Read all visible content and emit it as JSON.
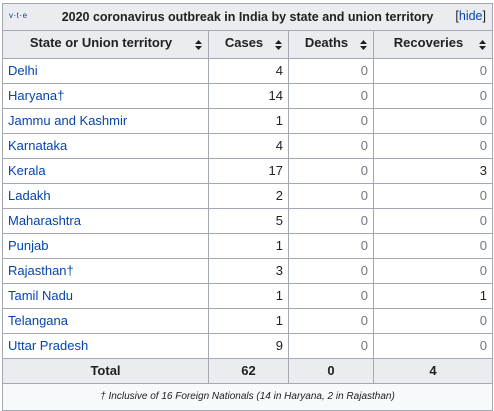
{
  "navbox": {
    "v": "v",
    "t": "t",
    "e": "e",
    "sep": "·",
    "title": "2020 coronavirus outbreak in India by state and union territory",
    "hide_label": "hide",
    "bracket_open": "[",
    "bracket_close": "]"
  },
  "columns": {
    "state": "State or Union territory",
    "cases": "Cases",
    "deaths": "Deaths",
    "recoveries": "Recoveries",
    "sort_icon": "sort-icon"
  },
  "rows": [
    {
      "name": "Delhi",
      "cases": "4",
      "deaths": "0",
      "recoveries": "0"
    },
    {
      "name": "Haryana†",
      "cases": "14",
      "deaths": "0",
      "recoveries": "0"
    },
    {
      "name": "Jammu and Kashmir",
      "cases": "1",
      "deaths": "0",
      "recoveries": "0"
    },
    {
      "name": "Karnataka",
      "cases": "4",
      "deaths": "0",
      "recoveries": "0"
    },
    {
      "name": "Kerala",
      "cases": "17",
      "deaths": "0",
      "recoveries": "3"
    },
    {
      "name": "Ladakh",
      "cases": "2",
      "deaths": "0",
      "recoveries": "0"
    },
    {
      "name": "Maharashtra",
      "cases": "5",
      "deaths": "0",
      "recoveries": "0"
    },
    {
      "name": "Punjab",
      "cases": "1",
      "deaths": "0",
      "recoveries": "0"
    },
    {
      "name": "Rajasthan†",
      "cases": "3",
      "deaths": "0",
      "recoveries": "0"
    },
    {
      "name": "Tamil Nadu",
      "cases": "1",
      "deaths": "0",
      "recoveries": "1"
    },
    {
      "name": "Telangana",
      "cases": "1",
      "deaths": "0",
      "recoveries": "0"
    },
    {
      "name": "Uttar Pradesh",
      "cases": "9",
      "deaths": "0",
      "recoveries": "0"
    }
  ],
  "total": {
    "label": "Total",
    "cases": "62",
    "deaths": "0",
    "recoveries": "4"
  },
  "footnote": "† Inclusive of 16 Foreign Nationals (14 in Haryana, 2 in Rajasthan)",
  "colors": {
    "link": "#0645ad",
    "header_bg": "#eaecf0",
    "border": "#a2a9b1",
    "zero_text": "#72777d"
  }
}
